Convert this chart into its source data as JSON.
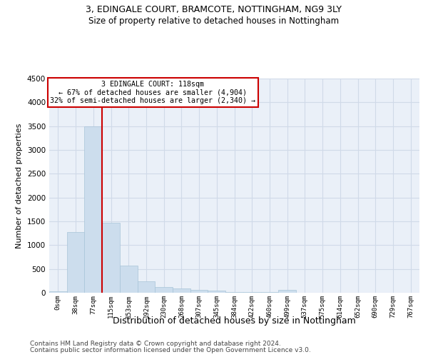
{
  "title1": "3, EDINGALE COURT, BRAMCOTE, NOTTINGHAM, NG9 3LY",
  "title2": "Size of property relative to detached houses in Nottingham",
  "xlabel": "Distribution of detached houses by size in Nottingham",
  "ylabel": "Number of detached properties",
  "bin_labels": [
    "0sqm",
    "38sqm",
    "77sqm",
    "115sqm",
    "153sqm",
    "192sqm",
    "230sqm",
    "268sqm",
    "307sqm",
    "345sqm",
    "384sqm",
    "422sqm",
    "460sqm",
    "499sqm",
    "537sqm",
    "575sqm",
    "614sqm",
    "652sqm",
    "690sqm",
    "729sqm",
    "767sqm"
  ],
  "bar_values": [
    35,
    1275,
    3500,
    1475,
    575,
    240,
    120,
    85,
    55,
    40,
    20,
    15,
    10,
    55,
    5,
    3,
    2,
    2,
    2,
    2,
    2
  ],
  "bar_color": "#ccdded",
  "bar_edgecolor": "#a8c4d8",
  "bar_linewidth": 0.5,
  "property_line_index": 2.5,
  "property_line_color": "#cc0000",
  "ylim": [
    0,
    4500
  ],
  "yticks": [
    0,
    500,
    1000,
    1500,
    2000,
    2500,
    3000,
    3500,
    4000,
    4500
  ],
  "annotation_text": "3 EDINGALE COURT: 118sqm\n← 67% of detached houses are smaller (4,904)\n32% of semi-detached houses are larger (2,340) →",
  "annotation_box_facecolor": "#ffffff",
  "annotation_box_edgecolor": "#cc0000",
  "footer1": "Contains HM Land Registry data © Crown copyright and database right 2024.",
  "footer2": "Contains public sector information licensed under the Open Government Licence v3.0.",
  "grid_color": "#d0dae8",
  "background_color": "#eaf0f8",
  "title1_fontsize": 9,
  "title2_fontsize": 8.5,
  "ylabel_fontsize": 8,
  "xlabel_fontsize": 9
}
